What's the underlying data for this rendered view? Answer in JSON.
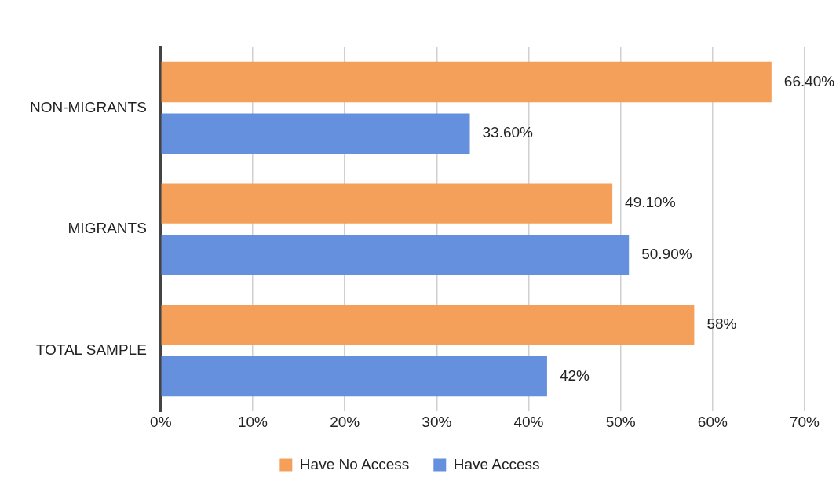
{
  "chart_data": {
    "type": "bar",
    "orientation": "horizontal",
    "categories": [
      "NON-MIGRANTS",
      "MIGRANTS",
      "TOTAL SAMPLE"
    ],
    "series": [
      {
        "name": "Have No Access",
        "color": "#f4a05a",
        "values": [
          66.4,
          49.1,
          58
        ],
        "value_labels": [
          "66.40%",
          "49.10%",
          "58%"
        ]
      },
      {
        "name": "Have Access",
        "color": "#6590de",
        "values": [
          33.6,
          50.9,
          42
        ],
        "value_labels": [
          "33.60%",
          "50.90%",
          "42%"
        ]
      }
    ],
    "xlim": [
      0,
      70
    ],
    "xticks": [
      {
        "value": 0,
        "label": "0%"
      },
      {
        "value": 10,
        "label": "10%"
      },
      {
        "value": 20,
        "label": "20%"
      },
      {
        "value": 30,
        "label": "30%"
      },
      {
        "value": 40,
        "label": "40%"
      },
      {
        "value": 50,
        "label": "50%"
      },
      {
        "value": 60,
        "label": "60%"
      },
      {
        "value": 70,
        "label": "70%"
      }
    ],
    "grid": "x",
    "legend": "bottom"
  }
}
